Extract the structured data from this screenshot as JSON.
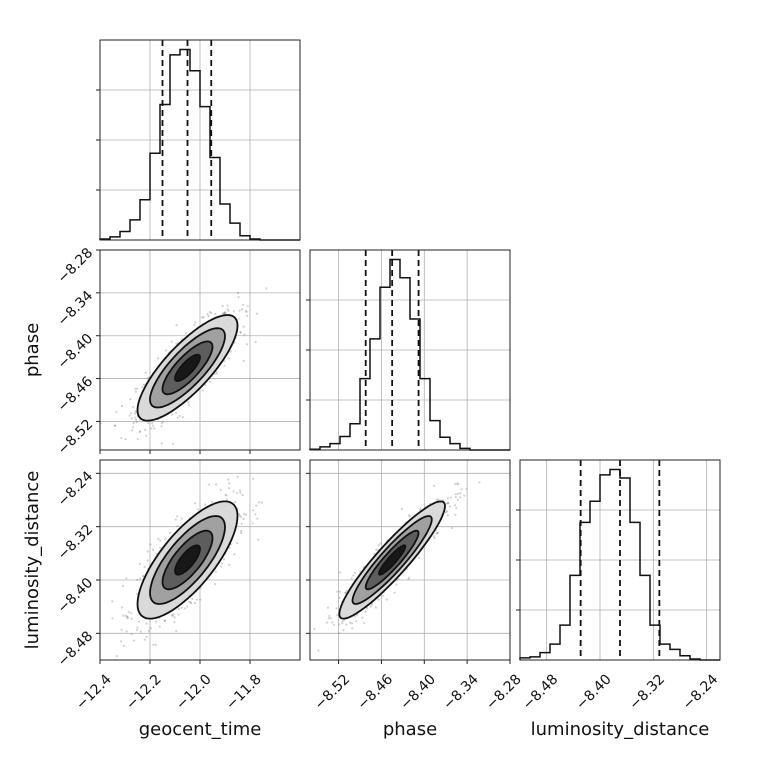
{
  "chart_data": {
    "type": "corner",
    "parameters": [
      "geocent_time",
      "phase",
      "luminosity_distance"
    ],
    "quantile_levels": [
      0.16,
      0.5,
      0.84
    ],
    "marginals": [
      {
        "parameter": "geocent_time",
        "range": [
          -12.4,
          -11.6
        ],
        "bin_edges": [
          -12.4,
          -12.36,
          -12.32,
          -12.28,
          -12.24,
          -12.2,
          -12.16,
          -12.12,
          -12.08,
          -12.04,
          -12.0,
          -11.96,
          -11.92,
          -11.88,
          -11.84,
          -11.8,
          -11.76,
          -11.72,
          -11.68,
          -11.64,
          -11.6
        ],
        "counts": [
          1,
          3,
          8,
          19,
          38,
          82,
          128,
          175,
          180,
          160,
          126,
          78,
          34,
          16,
          4,
          1,
          0,
          0,
          0,
          0
        ],
        "quantiles": [
          -12.15,
          -12.05,
          -11.955
        ]
      },
      {
        "parameter": "phase",
        "range": [
          -8.56,
          -8.28
        ],
        "bin_edges": [
          -8.56,
          -8.546,
          -8.532,
          -8.518,
          -8.504,
          -8.49,
          -8.476,
          -8.462,
          -8.448,
          -8.434,
          -8.42,
          -8.406,
          -8.392,
          -8.378,
          -8.364,
          -8.35,
          -8.336,
          -8.322,
          -8.308,
          -8.294,
          -8.28
        ],
        "counts": [
          1,
          4,
          8,
          17,
          33,
          90,
          140,
          205,
          240,
          217,
          165,
          90,
          37,
          16,
          8,
          2,
          0,
          0,
          0,
          0
        ],
        "quantiles": [
          -8.482,
          -8.445,
          -8.408
        ]
      },
      {
        "parameter": "luminosity_distance",
        "range": [
          -8.52,
          -8.22
        ],
        "bin_edges": [
          -8.52,
          -8.505,
          -8.49,
          -8.475,
          -8.46,
          -8.445,
          -8.43,
          -8.415,
          -8.4,
          -8.385,
          -8.37,
          -8.355,
          -8.34,
          -8.325,
          -8.31,
          -8.295,
          -8.28,
          -8.265,
          -8.25,
          -8.235,
          -8.22
        ],
        "counts": [
          2,
          3,
          7,
          15,
          33,
          80,
          130,
          150,
          175,
          180,
          172,
          130,
          80,
          33,
          15,
          10,
          4,
          1,
          0,
          0
        ],
        "quantiles": [
          -8.429,
          -8.37,
          -8.311
        ]
      }
    ],
    "pairs": [
      {
        "x": "geocent_time",
        "y": "phase",
        "xlim": [
          -12.4,
          -11.6
        ],
        "ylim": [
          -8.56,
          -8.28
        ],
        "mean": [
          -12.05,
          -8.445
        ],
        "sigma": [
          0.1,
          0.037
        ],
        "correlation": 0.8
      },
      {
        "x": "geocent_time",
        "y": "luminosity_distance",
        "xlim": [
          -12.4,
          -11.6
        ],
        "ylim": [
          -8.52,
          -8.22
        ],
        "mean": [
          -12.05,
          -8.37
        ],
        "sigma": [
          0.1,
          0.044
        ],
        "correlation": 0.75
      },
      {
        "x": "phase",
        "y": "luminosity_distance",
        "xlim": [
          -8.56,
          -8.28
        ],
        "ylim": [
          -8.52,
          -8.22
        ],
        "mean": [
          -8.445,
          -8.37
        ],
        "sigma": [
          0.037,
          0.044
        ],
        "correlation": 0.92
      }
    ],
    "contour_levels_sigma": [
      0.5,
      1.0,
      1.5,
      2.0
    ],
    "xticks": {
      "geocent_time": [
        "−12.4",
        "−12.2",
        "−12.0",
        "−11.8"
      ],
      "phase": [
        "−8.52",
        "−8.46",
        "−8.40",
        "−8.34",
        "−8.28"
      ],
      "luminosity_distance": [
        "−8.48",
        "−8.40",
        "−8.32",
        "−8.24"
      ]
    },
    "yticks": {
      "phase": [
        "−8.28",
        "−8.34",
        "−8.40",
        "−8.46",
        "−8.52"
      ],
      "luminosity_distance": [
        "−8.24",
        "−8.32",
        "−8.40",
        "−8.48"
      ]
    },
    "labels": {
      "x_geocent_time": "geocent_time",
      "x_phase": "phase",
      "x_luminosity_distance": "luminosity_distance",
      "y_phase": "phase",
      "y_luminosity_distance": "luminosity_distance"
    },
    "grid": true,
    "colors": {
      "hist": "#111111",
      "points": "#7a7a7a",
      "contour_fills": [
        "#111111",
        "#555555",
        "#9a9a9a",
        "#d8d8d8"
      ]
    }
  }
}
